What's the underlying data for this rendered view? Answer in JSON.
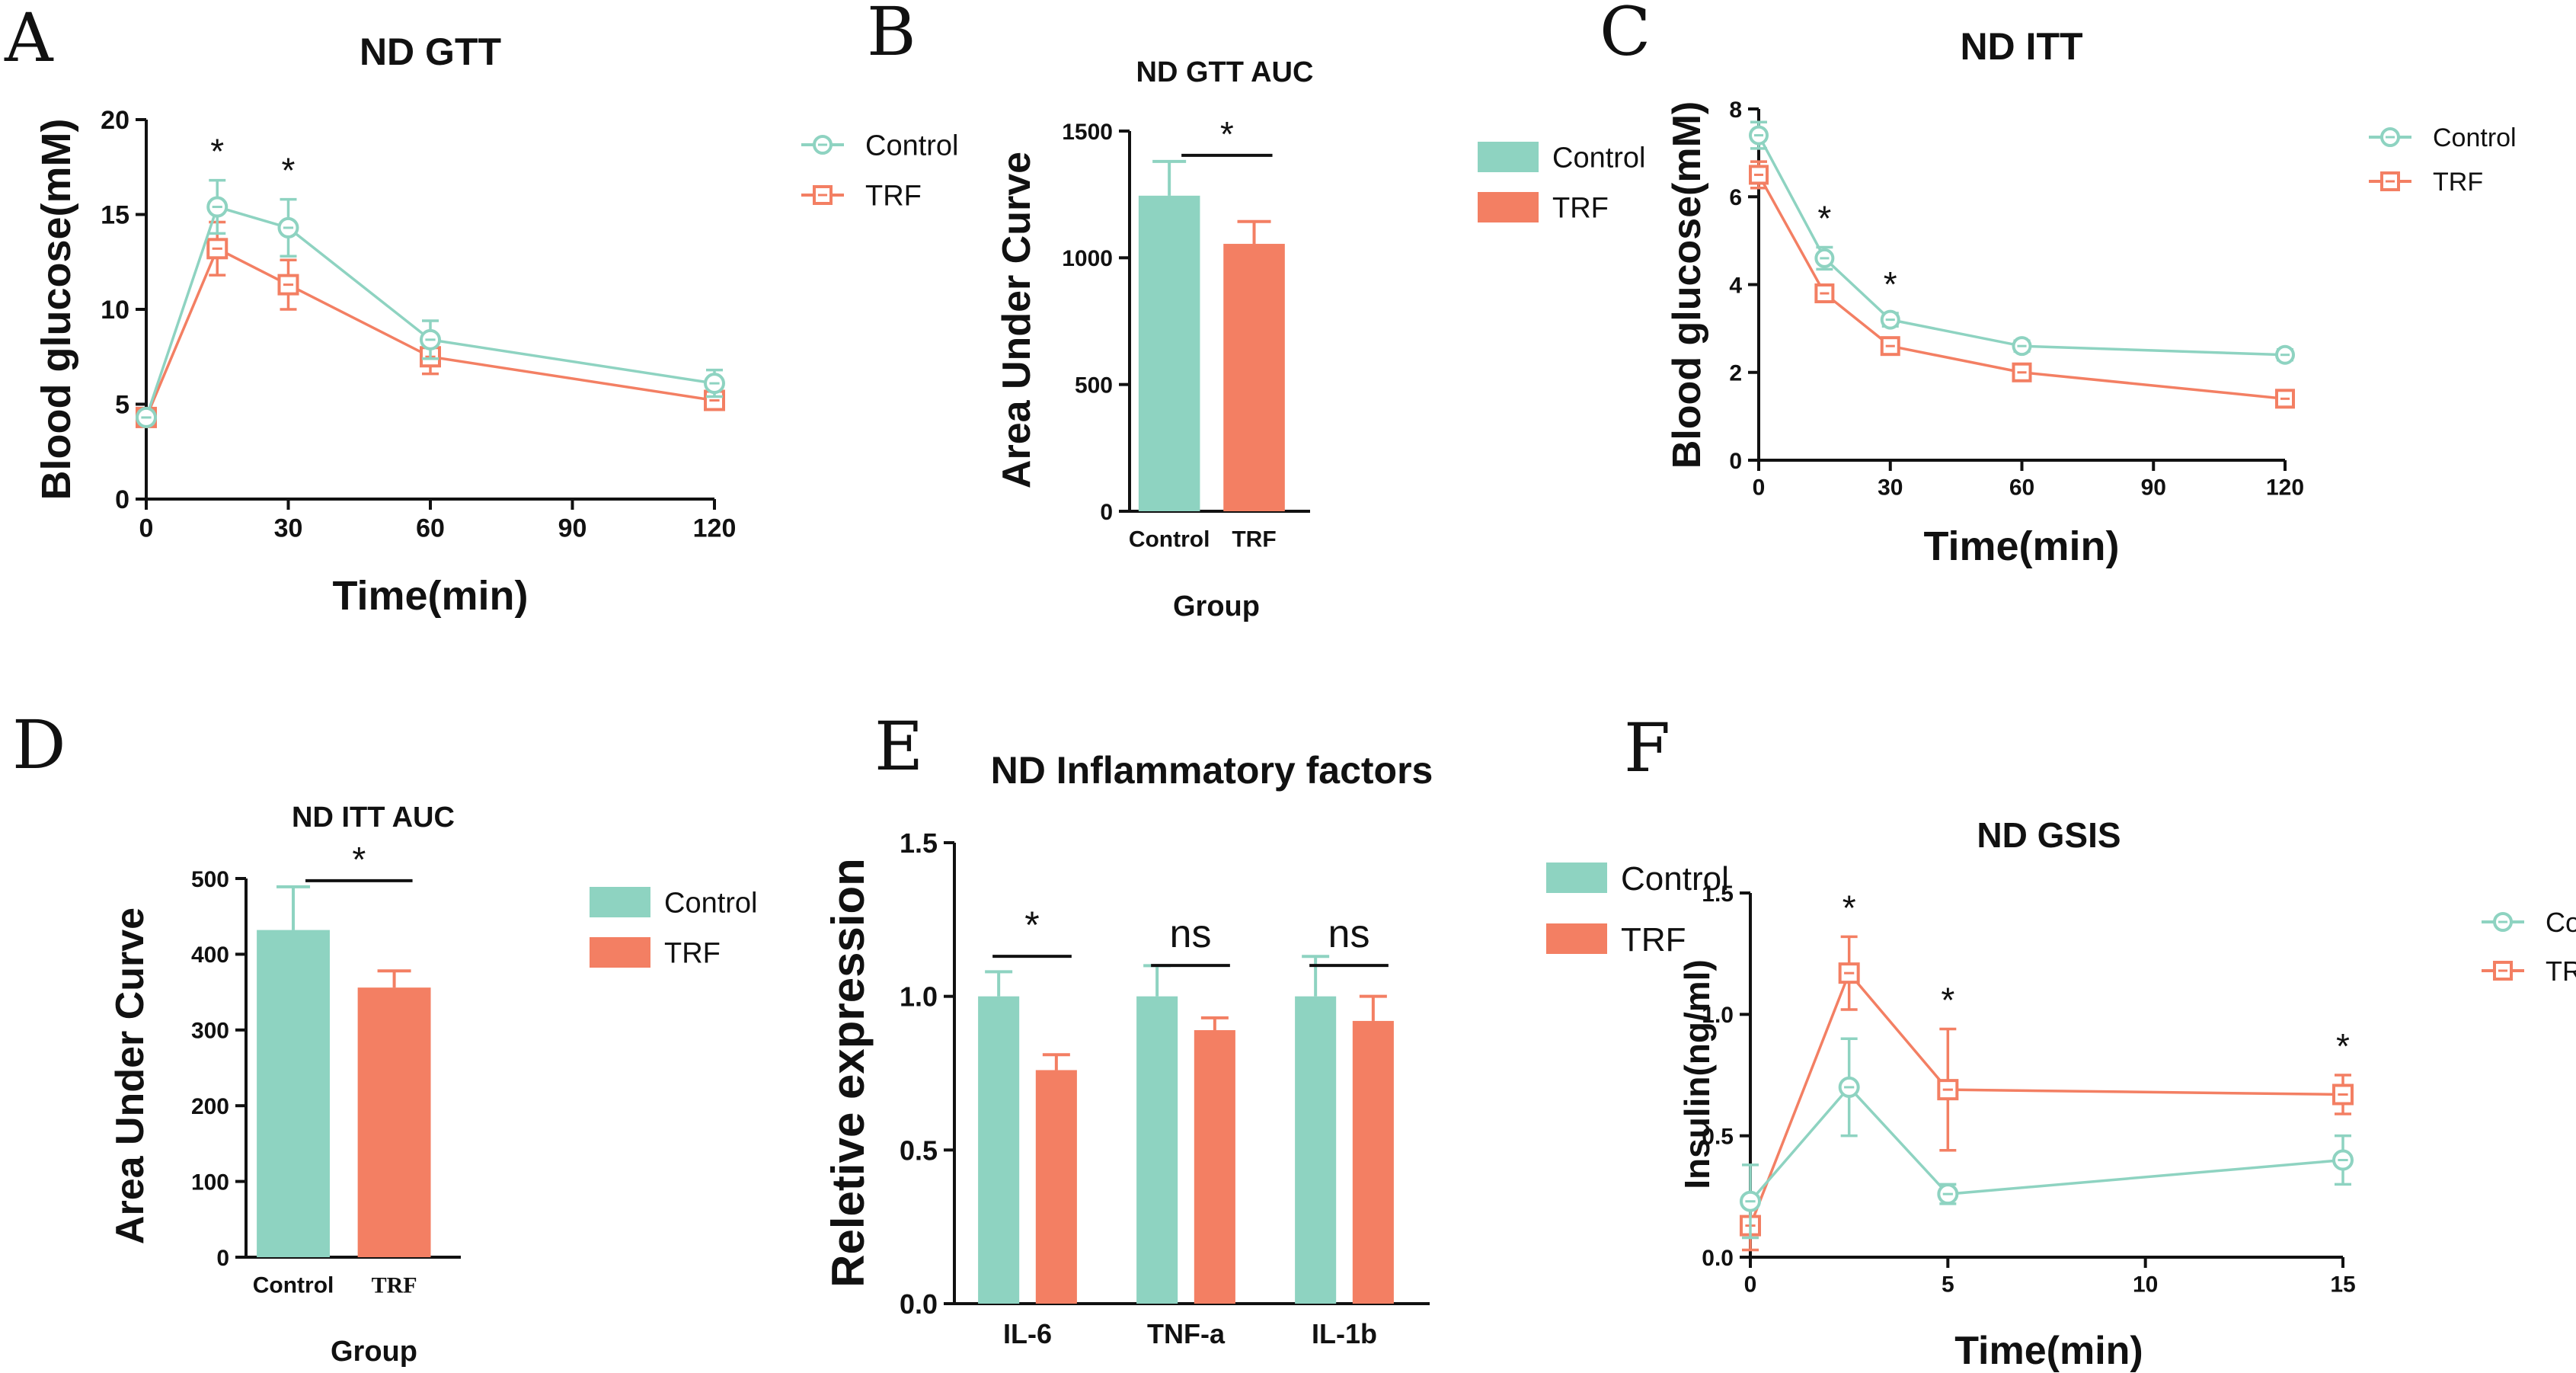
{
  "colors": {
    "control": "#8ed3c1",
    "trf": "#f37f63",
    "axis": "#111111"
  },
  "chart_data": [
    {
      "panel": "A",
      "type": "line",
      "title": "ND GTT",
      "xlabel": "Time(min)",
      "ylabel": "Blood glucose(mM)",
      "xlim": [
        0,
        120
      ],
      "ylim": [
        0,
        20
      ],
      "xticks": [
        0,
        30,
        60,
        90,
        120
      ],
      "yticks": [
        0,
        5,
        10,
        15,
        20
      ],
      "x": [
        0,
        15,
        30,
        60,
        120
      ],
      "series": [
        {
          "name": "Control",
          "marker": "circle",
          "values": [
            4.3,
            15.4,
            14.3,
            8.4,
            6.1
          ],
          "errors": [
            0.3,
            1.4,
            1.5,
            1.0,
            0.7
          ]
        },
        {
          "name": "TRF",
          "marker": "square",
          "values": [
            4.3,
            13.2,
            11.3,
            7.5,
            5.2
          ],
          "errors": [
            0.3,
            1.4,
            1.3,
            0.9,
            0.3
          ]
        }
      ],
      "annotations": [
        {
          "x": 15,
          "text": "*"
        },
        {
          "x": 30,
          "text": "*"
        }
      ]
    },
    {
      "panel": "B",
      "type": "bar",
      "title": "ND GTT AUC",
      "xlabel": "Group",
      "ylabel": "Area Under Curve",
      "ylim": [
        0,
        1500
      ],
      "yticks": [
        0,
        500,
        1000,
        1500
      ],
      "categories": [
        "Control",
        "TRF"
      ],
      "values": [
        1245,
        1055
      ],
      "errors": [
        135,
        88
      ],
      "significance": "*"
    },
    {
      "panel": "C",
      "type": "line",
      "title": "ND ITT",
      "xlabel": "Time(min)",
      "ylabel": "Blood glucose(mM)",
      "xlim": [
        0,
        120
      ],
      "ylim": [
        0,
        8
      ],
      "xticks": [
        0,
        30,
        60,
        90,
        120
      ],
      "yticks": [
        0,
        2,
        4,
        6,
        8
      ],
      "x": [
        0,
        15,
        30,
        60,
        120
      ],
      "series": [
        {
          "name": "Control",
          "marker": "circle",
          "values": [
            7.4,
            4.6,
            3.2,
            2.6,
            2.4
          ],
          "errors": [
            0.3,
            0.25,
            0.15,
            0.12,
            0.12
          ]
        },
        {
          "name": "TRF",
          "marker": "square",
          "values": [
            6.5,
            3.8,
            2.6,
            2.0,
            1.4
          ],
          "errors": [
            0.3,
            0.12,
            0.12,
            0.08,
            0.08
          ]
        }
      ],
      "annotations": [
        {
          "x": 15,
          "text": "*"
        },
        {
          "x": 30,
          "text": "*"
        }
      ]
    },
    {
      "panel": "D",
      "type": "bar",
      "title": "ND ITT AUC",
      "xlabel": "Group",
      "ylabel": "Area Under Curve",
      "ylim": [
        0,
        500
      ],
      "yticks": [
        0,
        100,
        200,
        300,
        400,
        500
      ],
      "categories": [
        "Control",
        "TRF"
      ],
      "values": [
        432,
        356
      ],
      "errors": [
        57,
        22
      ],
      "significance": "*"
    },
    {
      "panel": "E",
      "type": "bar",
      "title": "ND Inflammatory factors",
      "xlabel": "",
      "ylabel": "Reletive expression",
      "ylim": [
        0,
        1.5
      ],
      "yticks": [
        "0.0",
        "0.5",
        "1.0",
        "1.5"
      ],
      "categories": [
        "IL-6",
        "TNF-a",
        "IL-1b"
      ],
      "series": [
        {
          "name": "Control",
          "values": [
            1.0,
            1.0,
            1.0
          ],
          "errors": [
            0.08,
            0.1,
            0.13
          ]
        },
        {
          "name": "TRF",
          "values": [
            0.76,
            0.89,
            0.92
          ],
          "errors": [
            0.05,
            0.04,
            0.08
          ]
        }
      ],
      "significance": [
        "*",
        "ns",
        "ns"
      ]
    },
    {
      "panel": "F",
      "type": "line",
      "title": "ND GSIS",
      "xlabel": "Time(min)",
      "ylabel": "Insulin(ng/ml)",
      "xlim": [
        0,
        15
      ],
      "ylim": [
        0,
        1.5
      ],
      "xticks": [
        0,
        5,
        10,
        15
      ],
      "yticks": [
        "0.0",
        "0.5",
        "1.0",
        "1.5"
      ],
      "x": [
        0,
        2.5,
        5,
        15
      ],
      "series": [
        {
          "name": "Control",
          "marker": "circle",
          "values": [
            0.23,
            0.7,
            0.26,
            0.4
          ],
          "errors": [
            0.15,
            0.2,
            0.04,
            0.1
          ]
        },
        {
          "name": "TRF",
          "marker": "square",
          "values": [
            0.13,
            1.17,
            0.69,
            0.67
          ],
          "errors": [
            0.1,
            0.15,
            0.25,
            0.08
          ]
        }
      ],
      "annotations": [
        {
          "x": 2.5,
          "text": "*"
        },
        {
          "x": 5,
          "text": "*"
        },
        {
          "x": 15,
          "text": "*"
        }
      ]
    }
  ]
}
